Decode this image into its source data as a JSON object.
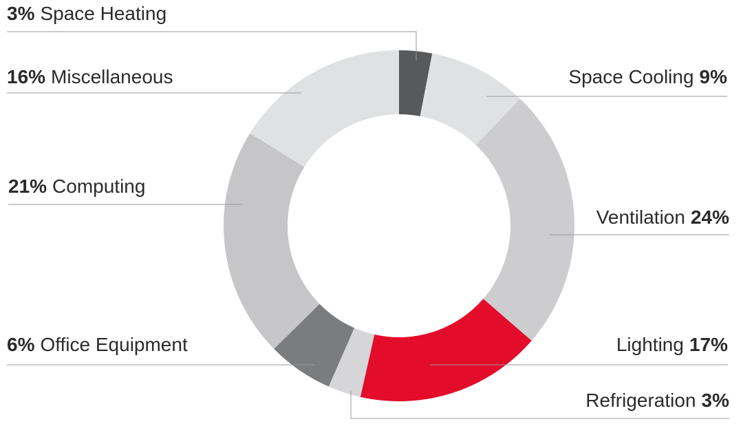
{
  "chart_data": {
    "type": "pie",
    "categories": [
      "Space Heating",
      "Space Cooling",
      "Ventilation",
      "Lighting",
      "Refrigeration",
      "Office Equipment",
      "Computing",
      "Miscellaneous"
    ],
    "values": [
      3,
      9,
      24,
      17,
      3,
      6,
      21,
      16
    ],
    "value_labels": [
      "3%",
      "9%",
      "24%",
      "17%",
      "3%",
      "6%",
      "21%",
      "16%"
    ],
    "colors": [
      "#58595b",
      "#e0e1e3",
      "#cdcdcf",
      "#e40c2b",
      "#d6d6d8",
      "#7b7c7e",
      "#c6c6c8",
      "#e0e1e3"
    ]
  }
}
